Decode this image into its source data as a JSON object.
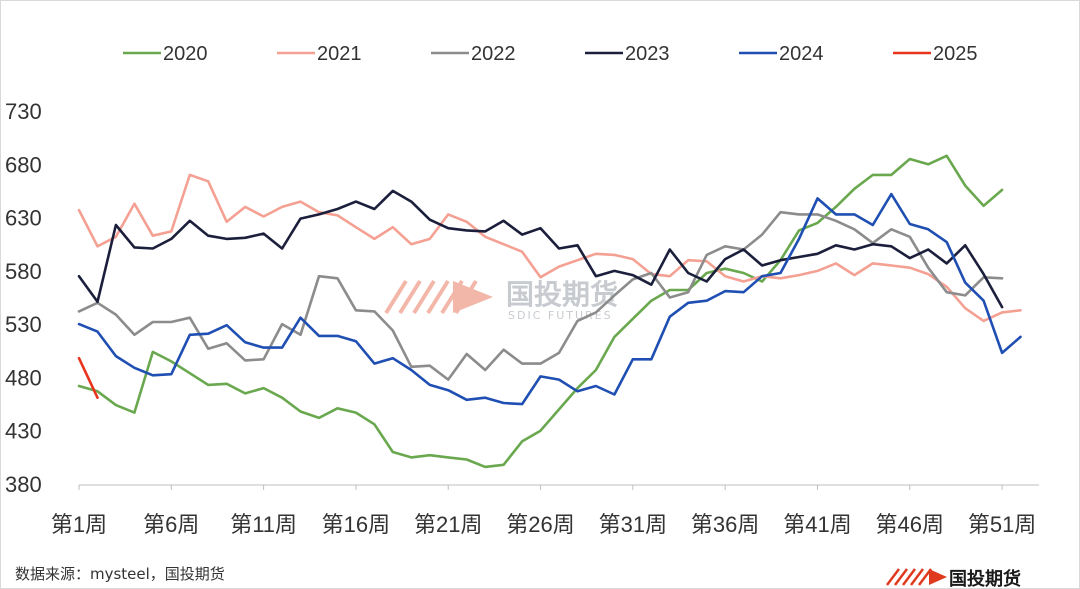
{
  "source_label": "数据来源：mysteel，国投期货",
  "watermark": {
    "name": "国投期货",
    "sub": "SDIC FUTURES"
  },
  "logo": {
    "name": "国投期货",
    "color": "#e03a1e"
  },
  "chart_data": {
    "type": "line",
    "title": "",
    "xlabel": "",
    "ylabel": "",
    "ylim": [
      380,
      730
    ],
    "yticks": [
      380,
      430,
      480,
      530,
      580,
      630,
      680,
      730
    ],
    "xlim": [
      1,
      53
    ],
    "x_tick_labels": [
      {
        "week": 1,
        "label": "第1周"
      },
      {
        "week": 6,
        "label": "第6周"
      },
      {
        "week": 11,
        "label": "第11周"
      },
      {
        "week": 16,
        "label": "第16周"
      },
      {
        "week": 21,
        "label": "第21周"
      },
      {
        "week": 26,
        "label": "第26周"
      },
      {
        "week": 31,
        "label": "第31周"
      },
      {
        "week": 36,
        "label": "第36周"
      },
      {
        "week": 41,
        "label": "第41周"
      },
      {
        "week": 46,
        "label": "第46周"
      },
      {
        "week": 51,
        "label": "第51周"
      }
    ],
    "grid": false,
    "legend_position": "top",
    "series": [
      {
        "name": "2020",
        "color": "#6aa84f",
        "values": [
          472,
          467,
          454,
          447,
          504,
          495,
          484,
          473,
          474,
          465,
          470,
          461,
          448,
          442,
          451,
          447,
          436,
          410,
          405,
          407,
          405,
          403,
          396,
          398,
          420,
          430,
          450,
          470,
          487,
          518,
          535,
          552,
          562,
          562,
          578,
          582,
          578,
          570,
          590,
          618,
          625,
          640,
          657,
          670,
          670,
          685,
          680,
          688,
          660,
          641,
          656
        ]
      },
      {
        "name": "2021",
        "color": "#f4a093",
        "values": [
          637,
          603,
          612,
          643,
          613,
          617,
          670,
          664,
          626,
          640,
          631,
          640,
          645,
          635,
          632,
          621,
          610,
          621,
          605,
          610,
          633,
          626,
          612,
          605,
          598,
          574,
          584,
          590,
          596,
          595,
          591,
          577,
          575,
          590,
          589,
          575,
          570,
          575,
          573,
          576,
          580,
          587,
          576,
          587,
          585,
          583,
          577,
          565,
          545,
          533,
          541,
          543
        ]
      },
      {
        "name": "2022",
        "color": "#8c8c8c",
        "values": [
          542,
          550,
          539,
          520,
          532,
          532,
          536,
          507,
          512,
          496,
          497,
          530,
          520,
          575,
          573,
          543,
          542,
          524,
          490,
          491,
          478,
          502,
          487,
          506,
          493,
          493,
          503,
          533,
          541,
          557,
          572,
          578,
          555,
          560,
          595,
          603,
          600,
          614,
          635,
          633,
          633,
          627,
          619,
          606,
          619,
          612,
          583,
          560,
          557,
          574,
          573
        ]
      },
      {
        "name": "2023",
        "color": "#1b1f3b",
        "values": [
          575,
          551,
          623,
          602,
          601,
          610,
          627,
          613,
          610,
          611,
          615,
          601,
          629,
          633,
          638,
          645,
          638,
          655,
          645,
          628,
          620,
          618,
          617,
          627,
          614,
          620,
          601,
          604,
          575,
          580,
          576,
          567,
          600,
          578,
          570,
          591,
          600,
          585,
          590,
          593,
          596,
          604,
          600,
          605,
          603,
          592,
          600,
          587,
          604,
          577,
          546
        ]
      },
      {
        "name": "2024",
        "color": "#1f4fb2",
        "values": [
          530,
          523,
          500,
          489,
          482,
          483,
          520,
          521,
          529,
          513,
          508,
          508,
          536,
          519,
          519,
          514,
          493,
          498,
          487,
          473,
          468,
          459,
          461,
          456,
          455,
          481,
          478,
          467,
          472,
          464,
          497,
          497,
          537,
          550,
          552,
          561,
          560,
          575,
          578,
          610,
          648,
          633,
          633,
          623,
          652,
          624,
          619,
          607,
          569,
          552,
          503,
          518
        ]
      },
      {
        "name": "2025",
        "color": "#e8341c",
        "values": [
          498,
          461
        ]
      }
    ]
  }
}
